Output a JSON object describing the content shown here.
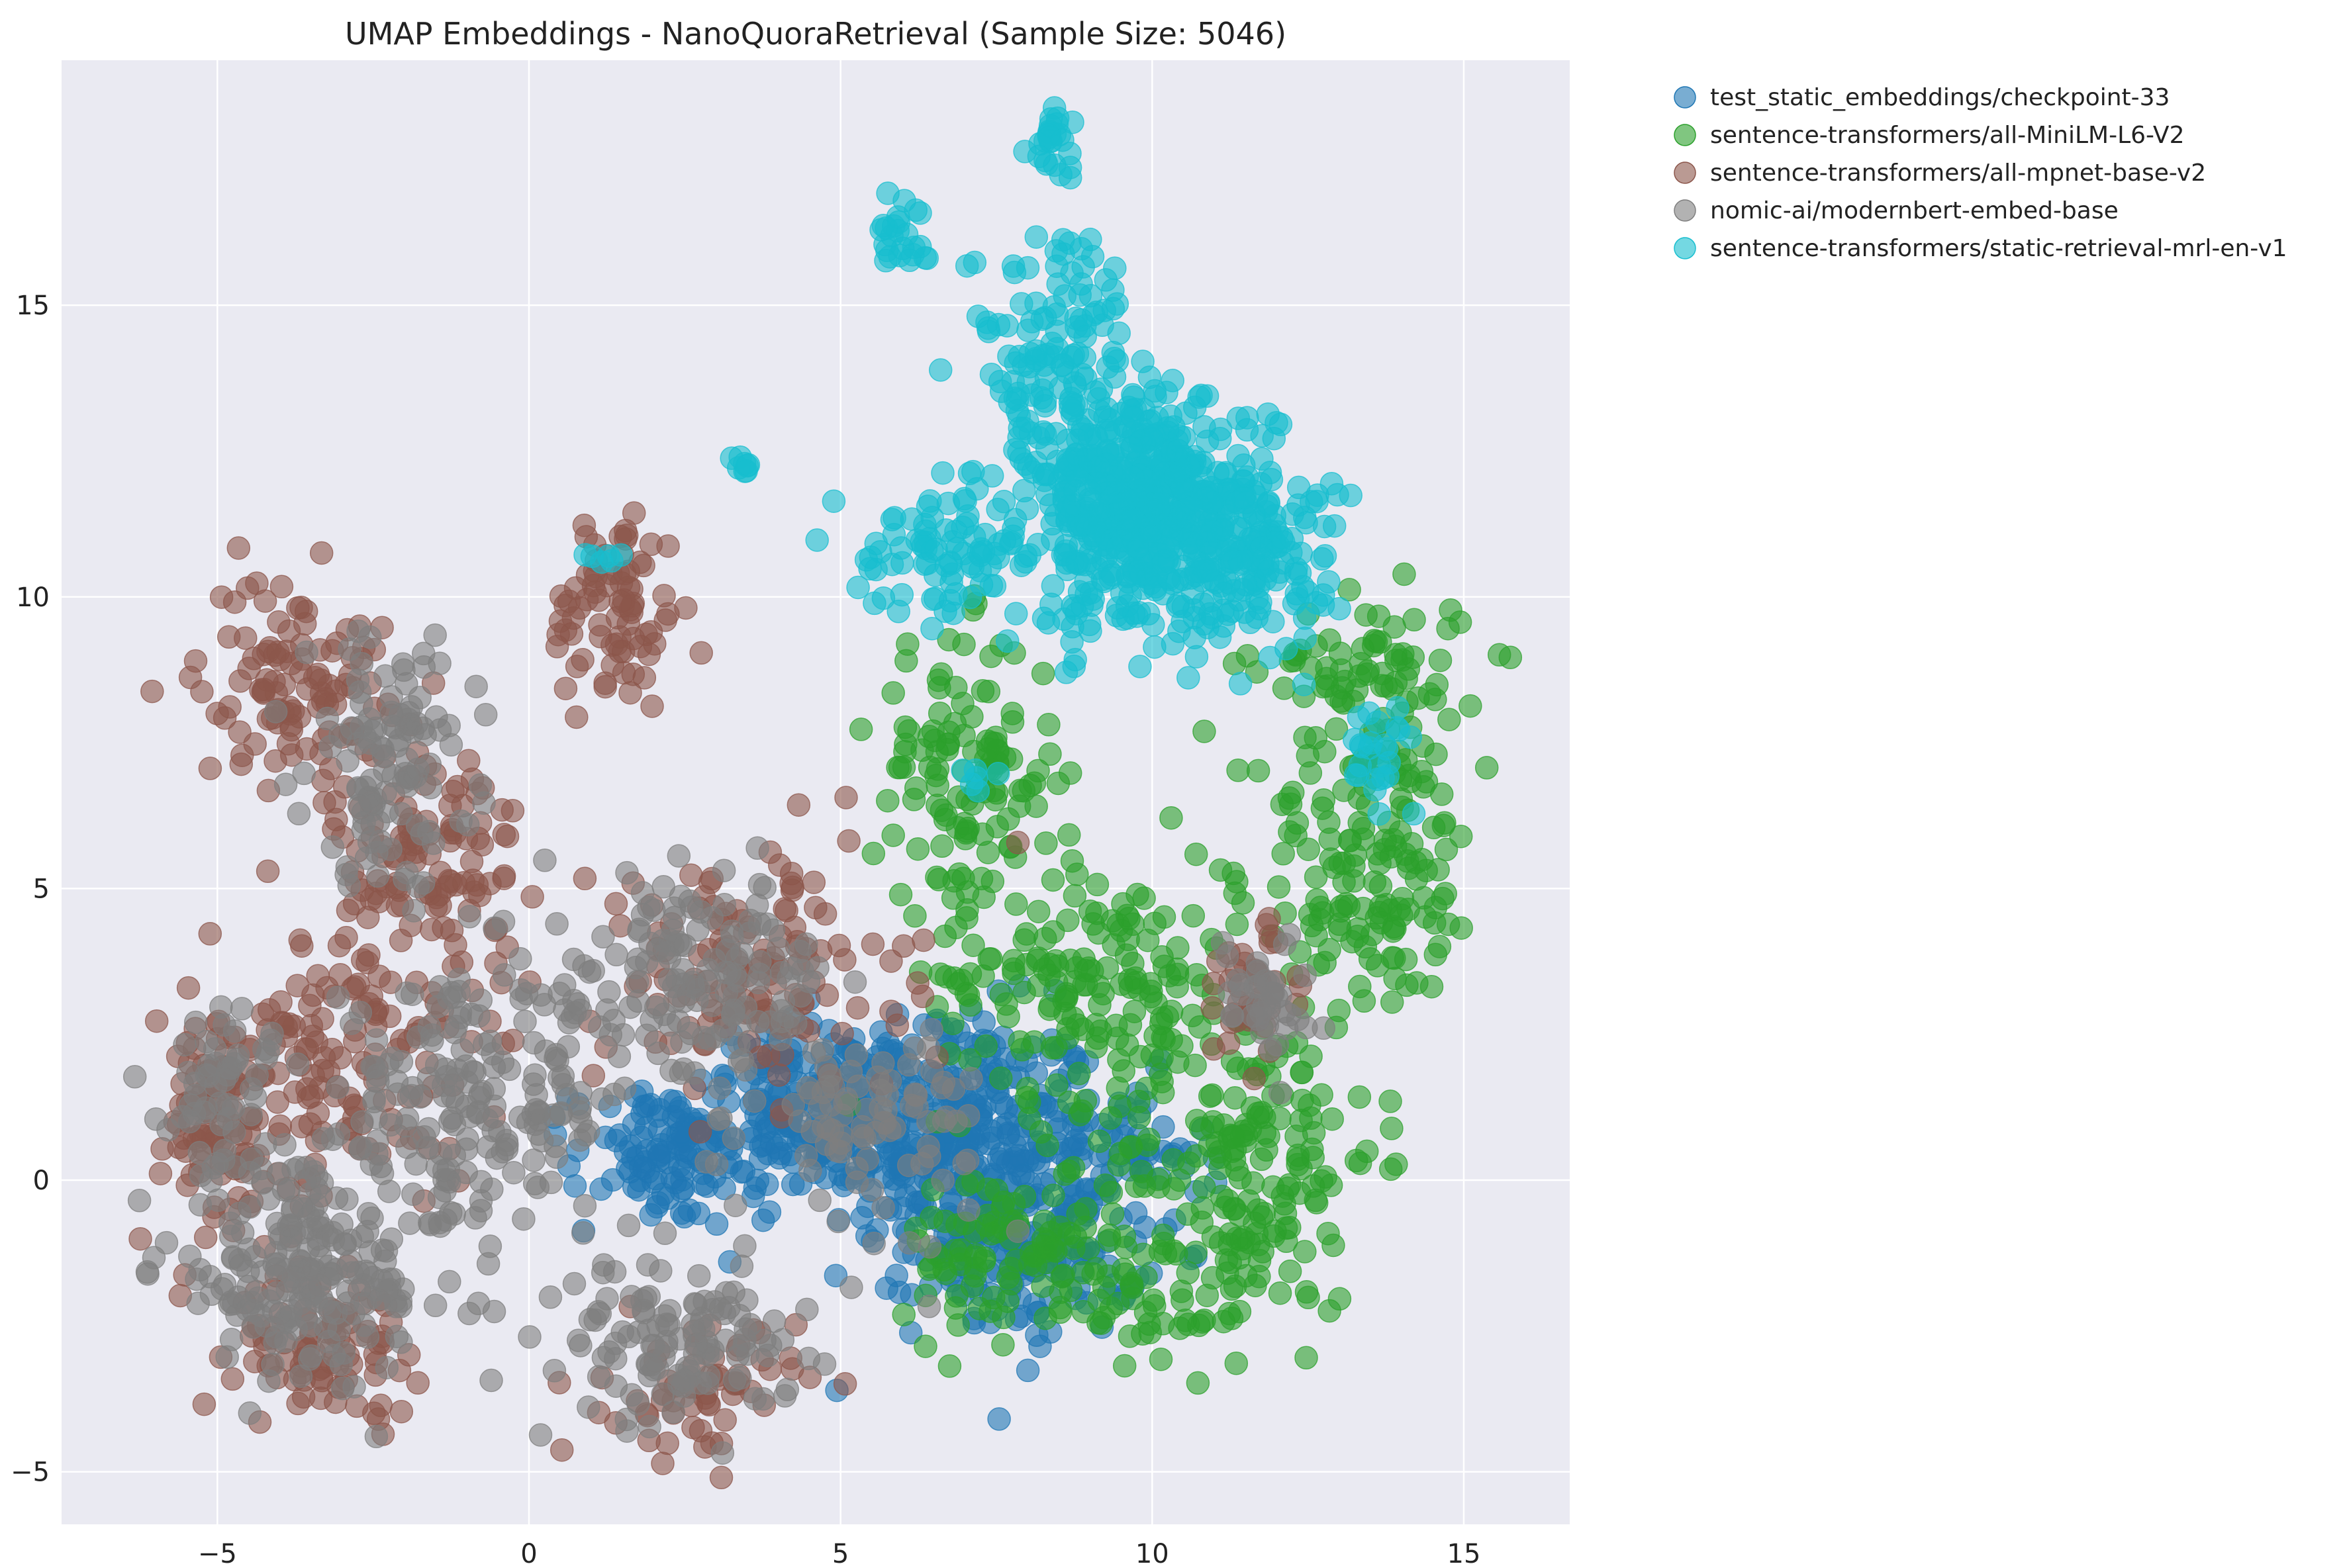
{
  "chart_data": {
    "type": "scatter",
    "title": "UMAP Embeddings - NanoQuoraRetrieval (Sample Size: 5046)",
    "xlabel": "",
    "ylabel": "",
    "xlim": [
      -7.5,
      16.7
    ],
    "ylim": [
      -5.9,
      19.2
    ],
    "xticks": [
      -5,
      0,
      5,
      10,
      15
    ],
    "yticks": [
      -5,
      0,
      5,
      10,
      15
    ],
    "grid": true,
    "legend_position": "outside top-right",
    "series": [
      {
        "name": "test_static_embeddings/checkpoint-33",
        "color": "#1f77b4",
        "clusters": [
          {
            "cx": 6.8,
            "cy": 0.8,
            "sx": 1.6,
            "sy": 1.4,
            "n": 320
          },
          {
            "cx": 4.6,
            "cy": 1.2,
            "sx": 1.2,
            "sy": 1.0,
            "n": 180
          },
          {
            "cx": 8.0,
            "cy": -1.2,
            "sx": 1.2,
            "sy": 1.0,
            "n": 140
          },
          {
            "cx": 2.2,
            "cy": 0.4,
            "sx": 1.0,
            "sy": 0.8,
            "n": 110
          },
          {
            "cx": 9.5,
            "cy": 0.4,
            "sx": 0.9,
            "sy": 0.9,
            "n": 60
          }
        ]
      },
      {
        "name": "sentence-transformers/all-MiniLM-L6-V2",
        "color": "#2ca02c",
        "clusters": [
          {
            "cx": 11.5,
            "cy": 0.5,
            "sx": 1.4,
            "sy": 1.8,
            "n": 180
          },
          {
            "cx": 13.5,
            "cy": 5.5,
            "sx": 1.2,
            "sy": 1.8,
            "n": 160
          },
          {
            "cx": 9.0,
            "cy": 3.5,
            "sx": 1.6,
            "sy": 1.4,
            "n": 170
          },
          {
            "cx": 7.0,
            "cy": 7.0,
            "sx": 1.0,
            "sy": 1.6,
            "n": 120
          },
          {
            "cx": 13.5,
            "cy": 8.8,
            "sx": 1.2,
            "sy": 0.8,
            "n": 70
          },
          {
            "cx": 7.8,
            "cy": -1.2,
            "sx": 1.2,
            "sy": 1.0,
            "n": 100
          },
          {
            "cx": 10.2,
            "cy": -2.0,
            "sx": 1.2,
            "sy": 0.8,
            "n": 60
          }
        ]
      },
      {
        "name": "sentence-transformers/all-mpnet-base-v2",
        "color": "#8c564b",
        "clusters": [
          {
            "cx": -3.8,
            "cy": 8.6,
            "sx": 1.0,
            "sy": 1.2,
            "n": 110
          },
          {
            "cx": -1.6,
            "cy": 5.5,
            "sx": 1.0,
            "sy": 1.4,
            "n": 110
          },
          {
            "cx": -3.0,
            "cy": 2.0,
            "sx": 1.4,
            "sy": 1.6,
            "n": 150
          },
          {
            "cx": -5.2,
            "cy": 0.8,
            "sx": 0.8,
            "sy": 1.4,
            "n": 80
          },
          {
            "cx": -3.2,
            "cy": -2.8,
            "sx": 1.0,
            "sy": 0.8,
            "n": 90
          },
          {
            "cx": 1.4,
            "cy": 9.8,
            "sx": 0.7,
            "sy": 1.2,
            "n": 80
          },
          {
            "cx": 3.5,
            "cy": 3.5,
            "sx": 1.6,
            "sy": 1.4,
            "n": 140
          },
          {
            "cx": 2.8,
            "cy": -3.6,
            "sx": 1.0,
            "sy": 0.8,
            "n": 60
          },
          {
            "cx": 11.6,
            "cy": 3.2,
            "sx": 0.6,
            "sy": 0.8,
            "n": 40
          }
        ]
      },
      {
        "name": "nomic-ai/modernbert-embed-base",
        "color": "#7f7f7f",
        "clusters": [
          {
            "cx": -2.2,
            "cy": 7.2,
            "sx": 0.9,
            "sy": 1.4,
            "n": 110
          },
          {
            "cx": -3.5,
            "cy": -1.6,
            "sx": 1.6,
            "sy": 1.2,
            "n": 200
          },
          {
            "cx": -1.0,
            "cy": 1.2,
            "sx": 1.6,
            "sy": 1.4,
            "n": 180
          },
          {
            "cx": 2.6,
            "cy": 3.4,
            "sx": 1.6,
            "sy": 1.2,
            "n": 150
          },
          {
            "cx": 2.4,
            "cy": -2.8,
            "sx": 1.2,
            "sy": 0.9,
            "n": 120
          },
          {
            "cx": 5.5,
            "cy": 1.0,
            "sx": 1.2,
            "sy": 1.2,
            "n": 90
          },
          {
            "cx": -5.0,
            "cy": 1.5,
            "sx": 0.7,
            "sy": 1.0,
            "n": 60
          },
          {
            "cx": 11.8,
            "cy": 3.2,
            "sx": 0.5,
            "sy": 0.7,
            "n": 40
          }
        ]
      },
      {
        "name": "sentence-transformers/static-retrieval-mrl-en-v1",
        "color": "#17becf",
        "clusters": [
          {
            "cx": 10.0,
            "cy": 11.4,
            "sx": 1.3,
            "sy": 1.3,
            "n": 650
          },
          {
            "cx": 8.4,
            "cy": 14.2,
            "sx": 0.9,
            "sy": 1.4,
            "n": 130
          },
          {
            "cx": 6.6,
            "cy": 10.8,
            "sx": 0.9,
            "sy": 0.7,
            "n": 80
          },
          {
            "cx": 12.0,
            "cy": 10.6,
            "sx": 0.9,
            "sy": 1.0,
            "n": 80
          },
          {
            "cx": 8.4,
            "cy": 17.8,
            "sx": 0.2,
            "sy": 0.3,
            "n": 25
          },
          {
            "cx": 6.0,
            "cy": 16.2,
            "sx": 0.3,
            "sy": 0.5,
            "n": 25
          },
          {
            "cx": 13.6,
            "cy": 7.3,
            "sx": 0.4,
            "sy": 0.5,
            "n": 25
          },
          {
            "cx": 3.4,
            "cy": 12.3,
            "sx": 0.15,
            "sy": 0.15,
            "n": 8
          },
          {
            "cx": 1.2,
            "cy": 10.7,
            "sx": 0.15,
            "sy": 0.1,
            "n": 6
          },
          {
            "cx": 7.2,
            "cy": 6.8,
            "sx": 0.2,
            "sy": 0.2,
            "n": 6
          }
        ]
      }
    ]
  }
}
